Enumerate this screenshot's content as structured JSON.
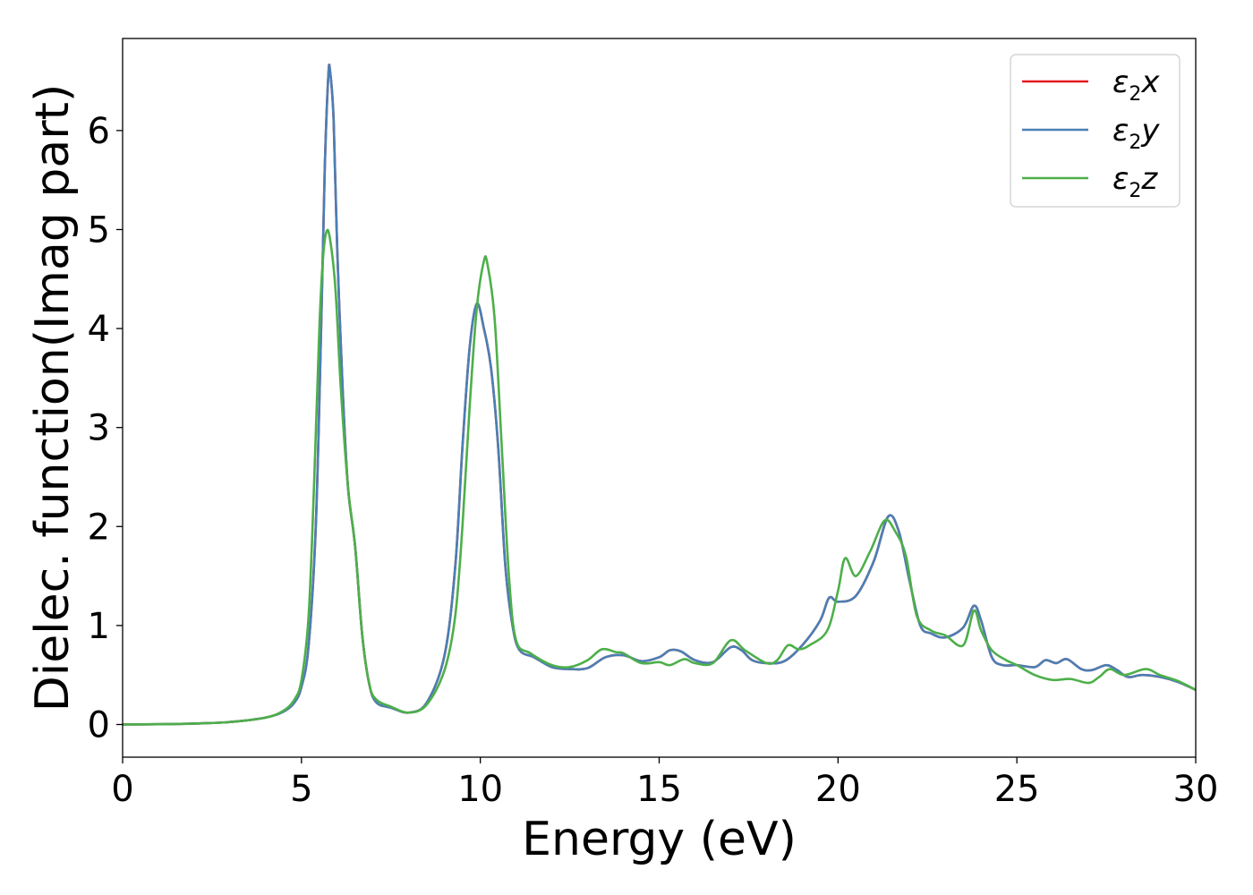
{
  "chart_data": {
    "type": "line",
    "xlabel": "Energy (eV)",
    "ylabel": "Dielec. function(Imag part)",
    "xlim": [
      0,
      30
    ],
    "ylim": [
      -0.33,
      6.93
    ],
    "xticks": [
      0,
      5,
      10,
      15,
      20,
      25,
      30
    ],
    "yticks": [
      0,
      1,
      2,
      3,
      4,
      5,
      6
    ],
    "grid": false,
    "legend_position": "top-right",
    "series": [
      {
        "name": "ε2x",
        "legend_base": "ε",
        "legend_sub": "2",
        "legend_var": "x",
        "color": "#e41a1c",
        "points": [
          [
            0,
            0
          ],
          [
            1,
            0.003
          ],
          [
            2,
            0.01
          ],
          [
            3,
            0.025
          ],
          [
            4,
            0.07
          ],
          [
            4.5,
            0.13
          ],
          [
            4.8,
            0.22
          ],
          [
            5.0,
            0.38
          ],
          [
            5.2,
            0.8
          ],
          [
            5.4,
            2.0
          ],
          [
            5.55,
            4.0
          ],
          [
            5.65,
            5.6
          ],
          [
            5.75,
            6.55
          ],
          [
            5.8,
            6.6
          ],
          [
            5.9,
            6.1
          ],
          [
            6.0,
            4.8
          ],
          [
            6.15,
            3.4
          ],
          [
            6.3,
            2.4
          ],
          [
            6.5,
            1.8
          ],
          [
            6.7,
            0.9
          ],
          [
            6.9,
            0.4
          ],
          [
            7.1,
            0.22
          ],
          [
            7.5,
            0.17
          ],
          [
            8.0,
            0.12
          ],
          [
            8.5,
            0.22
          ],
          [
            9.0,
            0.7
          ],
          [
            9.3,
            1.6
          ],
          [
            9.5,
            2.8
          ],
          [
            9.7,
            3.8
          ],
          [
            9.9,
            4.25
          ],
          [
            10.1,
            4.0
          ],
          [
            10.3,
            3.6
          ],
          [
            10.5,
            2.8
          ],
          [
            10.7,
            1.6
          ],
          [
            10.9,
            1.0
          ],
          [
            11.1,
            0.75
          ],
          [
            11.5,
            0.68
          ],
          [
            12.0,
            0.58
          ],
          [
            12.5,
            0.56
          ],
          [
            13.0,
            0.57
          ],
          [
            13.5,
            0.68
          ],
          [
            14.0,
            0.7
          ],
          [
            14.5,
            0.64
          ],
          [
            15.0,
            0.68
          ],
          [
            15.3,
            0.75
          ],
          [
            15.6,
            0.74
          ],
          [
            16.0,
            0.65
          ],
          [
            16.5,
            0.63
          ],
          [
            17.0,
            0.78
          ],
          [
            17.3,
            0.75
          ],
          [
            17.6,
            0.65
          ],
          [
            18.0,
            0.62
          ],
          [
            18.5,
            0.64
          ],
          [
            19.0,
            0.8
          ],
          [
            19.5,
            1.05
          ],
          [
            19.75,
            1.28
          ],
          [
            20.0,
            1.24
          ],
          [
            20.5,
            1.3
          ],
          [
            21.0,
            1.65
          ],
          [
            21.4,
            2.1
          ],
          [
            21.7,
            1.95
          ],
          [
            22.0,
            1.45
          ],
          [
            22.3,
            1.0
          ],
          [
            22.6,
            0.92
          ],
          [
            23.0,
            0.88
          ],
          [
            23.5,
            0.98
          ],
          [
            23.8,
            1.2
          ],
          [
            24.0,
            1.05
          ],
          [
            24.3,
            0.68
          ],
          [
            24.6,
            0.6
          ],
          [
            25.0,
            0.6
          ],
          [
            25.5,
            0.58
          ],
          [
            25.8,
            0.65
          ],
          [
            26.1,
            0.62
          ],
          [
            26.4,
            0.66
          ],
          [
            26.8,
            0.56
          ],
          [
            27.1,
            0.55
          ],
          [
            27.5,
            0.6
          ],
          [
            27.8,
            0.55
          ],
          [
            28.1,
            0.48
          ],
          [
            28.5,
            0.5
          ],
          [
            29.0,
            0.48
          ],
          [
            29.5,
            0.43
          ],
          [
            30.0,
            0.35
          ]
        ]
      },
      {
        "name": "ε2y",
        "legend_base": "ε",
        "legend_sub": "2",
        "legend_var": "y",
        "color": "#4a7fb5",
        "points": [
          [
            0,
            0
          ],
          [
            1,
            0.003
          ],
          [
            2,
            0.01
          ],
          [
            3,
            0.025
          ],
          [
            4,
            0.07
          ],
          [
            4.5,
            0.13
          ],
          [
            4.8,
            0.22
          ],
          [
            5.0,
            0.38
          ],
          [
            5.2,
            0.8
          ],
          [
            5.4,
            2.0
          ],
          [
            5.55,
            4.0
          ],
          [
            5.65,
            5.6
          ],
          [
            5.75,
            6.55
          ],
          [
            5.8,
            6.6
          ],
          [
            5.9,
            6.1
          ],
          [
            6.0,
            4.8
          ],
          [
            6.15,
            3.4
          ],
          [
            6.3,
            2.4
          ],
          [
            6.5,
            1.8
          ],
          [
            6.7,
            0.9
          ],
          [
            6.9,
            0.4
          ],
          [
            7.1,
            0.22
          ],
          [
            7.5,
            0.17
          ],
          [
            8.0,
            0.12
          ],
          [
            8.5,
            0.22
          ],
          [
            9.0,
            0.7
          ],
          [
            9.3,
            1.6
          ],
          [
            9.5,
            2.8
          ],
          [
            9.7,
            3.8
          ],
          [
            9.9,
            4.25
          ],
          [
            10.1,
            4.0
          ],
          [
            10.3,
            3.6
          ],
          [
            10.5,
            2.8
          ],
          [
            10.7,
            1.6
          ],
          [
            10.9,
            1.0
          ],
          [
            11.1,
            0.75
          ],
          [
            11.5,
            0.68
          ],
          [
            12.0,
            0.58
          ],
          [
            12.5,
            0.56
          ],
          [
            13.0,
            0.57
          ],
          [
            13.5,
            0.68
          ],
          [
            14.0,
            0.7
          ],
          [
            14.5,
            0.64
          ],
          [
            15.0,
            0.68
          ],
          [
            15.3,
            0.75
          ],
          [
            15.6,
            0.74
          ],
          [
            16.0,
            0.65
          ],
          [
            16.5,
            0.63
          ],
          [
            17.0,
            0.78
          ],
          [
            17.3,
            0.75
          ],
          [
            17.6,
            0.65
          ],
          [
            18.0,
            0.62
          ],
          [
            18.5,
            0.64
          ],
          [
            19.0,
            0.8
          ],
          [
            19.5,
            1.05
          ],
          [
            19.75,
            1.28
          ],
          [
            20.0,
            1.24
          ],
          [
            20.5,
            1.3
          ],
          [
            21.0,
            1.65
          ],
          [
            21.4,
            2.1
          ],
          [
            21.7,
            1.95
          ],
          [
            22.0,
            1.45
          ],
          [
            22.3,
            1.0
          ],
          [
            22.6,
            0.92
          ],
          [
            23.0,
            0.88
          ],
          [
            23.5,
            0.98
          ],
          [
            23.8,
            1.2
          ],
          [
            24.0,
            1.05
          ],
          [
            24.3,
            0.68
          ],
          [
            24.6,
            0.6
          ],
          [
            25.0,
            0.6
          ],
          [
            25.5,
            0.58
          ],
          [
            25.8,
            0.65
          ],
          [
            26.1,
            0.62
          ],
          [
            26.4,
            0.66
          ],
          [
            26.8,
            0.56
          ],
          [
            27.1,
            0.55
          ],
          [
            27.5,
            0.6
          ],
          [
            27.8,
            0.55
          ],
          [
            28.1,
            0.48
          ],
          [
            28.5,
            0.5
          ],
          [
            29.0,
            0.48
          ],
          [
            29.5,
            0.43
          ],
          [
            30.0,
            0.35
          ]
        ]
      },
      {
        "name": "ε2z",
        "legend_base": "ε",
        "legend_sub": "2",
        "legend_var": "z",
        "color": "#4daf4a",
        "points": [
          [
            0,
            0
          ],
          [
            1,
            0.003
          ],
          [
            2,
            0.01
          ],
          [
            3,
            0.025
          ],
          [
            4,
            0.07
          ],
          [
            4.5,
            0.14
          ],
          [
            4.8,
            0.25
          ],
          [
            5.0,
            0.45
          ],
          [
            5.2,
            1.1
          ],
          [
            5.35,
            2.4
          ],
          [
            5.5,
            4.0
          ],
          [
            5.6,
            4.7
          ],
          [
            5.7,
            4.98
          ],
          [
            5.8,
            4.9
          ],
          [
            5.95,
            4.4
          ],
          [
            6.1,
            3.4
          ],
          [
            6.3,
            2.4
          ],
          [
            6.5,
            1.8
          ],
          [
            6.7,
            0.9
          ],
          [
            6.9,
            0.4
          ],
          [
            7.1,
            0.25
          ],
          [
            7.5,
            0.18
          ],
          [
            8.0,
            0.12
          ],
          [
            8.5,
            0.2
          ],
          [
            9.0,
            0.55
          ],
          [
            9.3,
            1.1
          ],
          [
            9.5,
            2.0
          ],
          [
            9.7,
            3.2
          ],
          [
            9.9,
            4.2
          ],
          [
            10.1,
            4.68
          ],
          [
            10.2,
            4.65
          ],
          [
            10.4,
            4.1
          ],
          [
            10.6,
            2.8
          ],
          [
            10.8,
            1.5
          ],
          [
            11.0,
            0.85
          ],
          [
            11.4,
            0.72
          ],
          [
            12.0,
            0.6
          ],
          [
            12.5,
            0.58
          ],
          [
            13.0,
            0.65
          ],
          [
            13.4,
            0.76
          ],
          [
            13.8,
            0.73
          ],
          [
            14.0,
            0.72
          ],
          [
            14.5,
            0.62
          ],
          [
            15.0,
            0.63
          ],
          [
            15.3,
            0.6
          ],
          [
            15.7,
            0.66
          ],
          [
            16.0,
            0.62
          ],
          [
            16.5,
            0.62
          ],
          [
            17.0,
            0.85
          ],
          [
            17.4,
            0.75
          ],
          [
            18.0,
            0.62
          ],
          [
            18.3,
            0.65
          ],
          [
            18.6,
            0.8
          ],
          [
            18.9,
            0.76
          ],
          [
            19.2,
            0.8
          ],
          [
            19.7,
            0.95
          ],
          [
            20.0,
            1.35
          ],
          [
            20.2,
            1.68
          ],
          [
            20.5,
            1.5
          ],
          [
            20.9,
            1.75
          ],
          [
            21.3,
            2.06
          ],
          [
            21.6,
            1.95
          ],
          [
            21.9,
            1.7
          ],
          [
            22.2,
            1.1
          ],
          [
            22.6,
            0.95
          ],
          [
            23.0,
            0.9
          ],
          [
            23.5,
            0.8
          ],
          [
            23.8,
            1.15
          ],
          [
            24.0,
            0.95
          ],
          [
            24.3,
            0.75
          ],
          [
            24.7,
            0.65
          ],
          [
            25.0,
            0.6
          ],
          [
            25.5,
            0.5
          ],
          [
            26.0,
            0.45
          ],
          [
            26.5,
            0.46
          ],
          [
            27.0,
            0.42
          ],
          [
            27.3,
            0.48
          ],
          [
            27.6,
            0.56
          ],
          [
            28.0,
            0.5
          ],
          [
            28.6,
            0.56
          ],
          [
            29.0,
            0.5
          ],
          [
            29.5,
            0.44
          ],
          [
            30.0,
            0.35
          ]
        ]
      }
    ]
  }
}
